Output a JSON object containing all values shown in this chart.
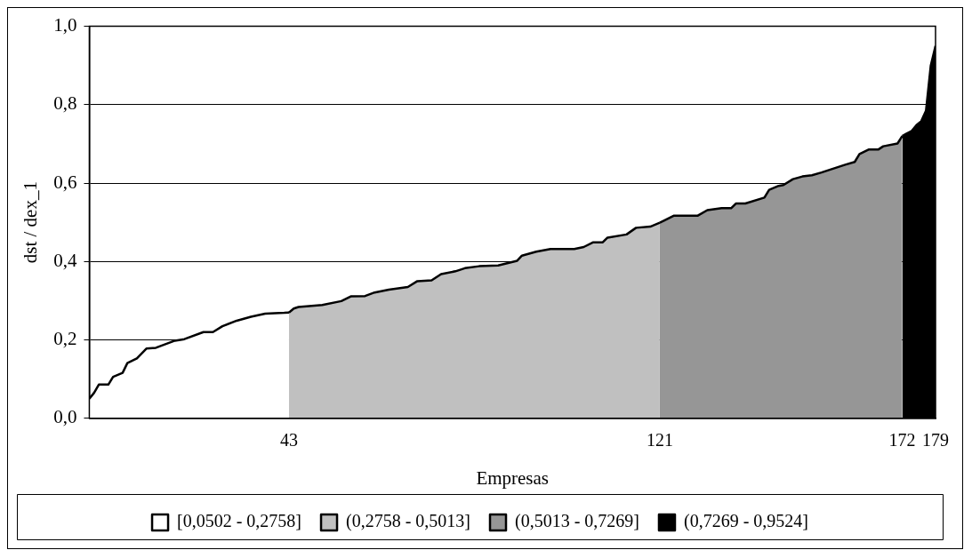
{
  "chart_data": {
    "type": "area",
    "xlabel": "Empresas",
    "ylabel": "dst / dex_1",
    "xlim": [
      1,
      179
    ],
    "xticks": [
      43,
      121,
      172,
      179
    ],
    "ylim": [
      0,
      1
    ],
    "yticks": [
      {
        "value": 0,
        "label": "0,0"
      },
      {
        "value": 0.2,
        "label": "0,2"
      },
      {
        "value": 0.4,
        "label": "0,4"
      },
      {
        "value": 0.6,
        "label": "0,6"
      },
      {
        "value": 0.8,
        "label": "0,8"
      },
      {
        "value": 1,
        "label": "1,0"
      }
    ],
    "grid": "y",
    "legend": "bottom",
    "line_style": "solid",
    "marker": "none",
    "series": [
      {
        "name": "[0,0502 - 0,2758]",
        "color": "#ffffff",
        "x": [
          1,
          2,
          3,
          5,
          6,
          8,
          9,
          11,
          13,
          15,
          19,
          21,
          25,
          27,
          29,
          32,
          35,
          38,
          42,
          43
        ],
        "values": [
          0.05,
          0.065,
          0.086,
          0.086,
          0.106,
          0.116,
          0.141,
          0.153,
          0.178,
          0.18,
          0.198,
          0.202,
          0.22,
          0.22,
          0.235,
          0.249,
          0.259,
          0.267,
          0.269,
          0.27
        ]
      },
      {
        "name": "(0,2758 - 0,5013]",
        "color": "#c0c0c0",
        "x": [
          43,
          44,
          45,
          50,
          54,
          56,
          59,
          61,
          64,
          68,
          70,
          73,
          75,
          78,
          80,
          83,
          87,
          91,
          92,
          95,
          98,
          103,
          105,
          107,
          109,
          110,
          114,
          116,
          119,
          121
        ],
        "values": [
          0.27,
          0.28,
          0.284,
          0.289,
          0.299,
          0.311,
          0.312,
          0.321,
          0.328,
          0.335,
          0.35,
          0.352,
          0.368,
          0.375,
          0.383,
          0.388,
          0.39,
          0.402,
          0.415,
          0.425,
          0.432,
          0.432,
          0.437,
          0.449,
          0.449,
          0.461,
          0.469,
          0.486,
          0.489,
          0.499
        ]
      },
      {
        "name": "(0,5013 - 0,7269]",
        "color": "#969696",
        "x": [
          121,
          124,
          129,
          131,
          134,
          136,
          137,
          139,
          143,
          144,
          146,
          147,
          149,
          151,
          153,
          155,
          160,
          162,
          163,
          165,
          167,
          168,
          171,
          172
        ],
        "values": [
          0.499,
          0.517,
          0.517,
          0.531,
          0.536,
          0.536,
          0.548,
          0.548,
          0.563,
          0.583,
          0.593,
          0.595,
          0.61,
          0.617,
          0.62,
          0.627,
          0.647,
          0.654,
          0.674,
          0.686,
          0.686,
          0.694,
          0.701,
          0.72
        ]
      },
      {
        "name": "(0,7269 - 0,9524]",
        "color": "#000000",
        "x": [
          172,
          173,
          174,
          175,
          176,
          177,
          178,
          179
        ],
        "values": [
          0.72,
          0.727,
          0.733,
          0.748,
          0.758,
          0.785,
          0.9,
          0.95
        ]
      }
    ]
  }
}
